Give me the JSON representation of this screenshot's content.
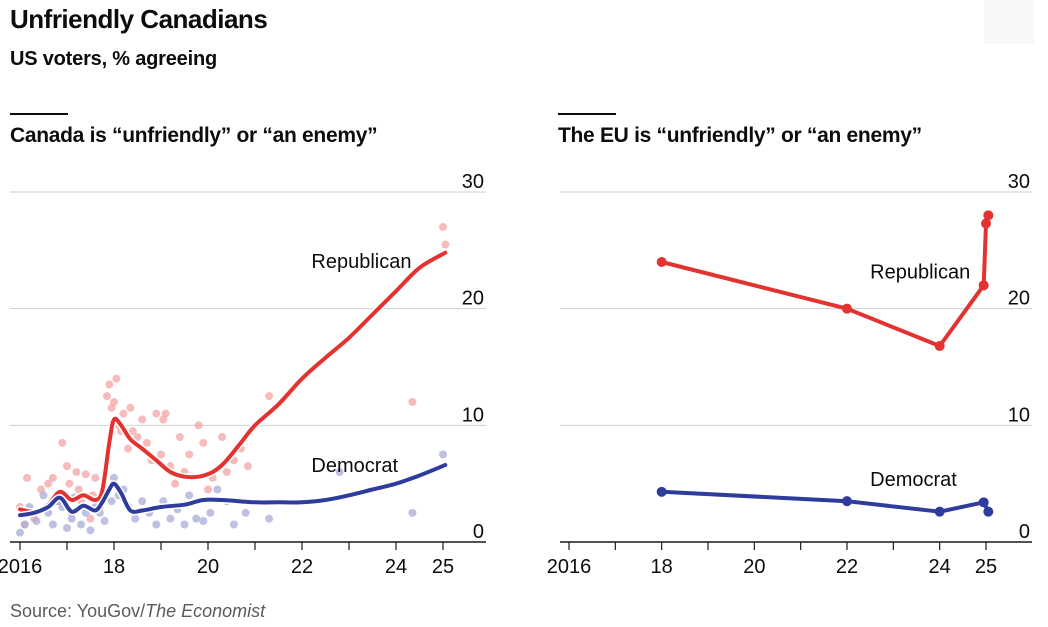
{
  "header": {
    "title": "Unfriendly Canadians",
    "subtitle": "US voters, % agreeing"
  },
  "footer": {
    "source_prefix": "Source: YouGov/",
    "source_italic": "The Economist"
  },
  "colors": {
    "republican": "#e3322f",
    "democrat": "#2e3c9c",
    "republican_dots": "#f3a6a6",
    "democrat_dots": "#a9acd8",
    "grid": "#cfcfcf",
    "axis": "#1a1a1a"
  },
  "chart_data": [
    {
      "type": "line",
      "title": "Canada is “unfriendly” or “an enemy”",
      "ylim": [
        0,
        30
      ],
      "y_ticks": [
        0,
        10,
        20,
        30
      ],
      "xlim": [
        2015.9,
        2025.2
      ],
      "x_ticks": [
        2016,
        2017,
        2018,
        2019,
        2020,
        2021,
        2022,
        2023,
        2024,
        2025
      ],
      "x_tick_labels": [
        {
          "x": 2016,
          "label": "2016"
        },
        {
          "x": 2018,
          "label": "18"
        },
        {
          "x": 2020,
          "label": "20"
        },
        {
          "x": 2022,
          "label": "22"
        },
        {
          "x": 2024,
          "label": "24"
        },
        {
          "x": 2025,
          "label": "25"
        }
      ],
      "series": [
        {
          "name": "Republican",
          "x": [
            2016.0,
            2016.3,
            2016.6,
            2016.85,
            2017.1,
            2017.35,
            2017.6,
            2017.75,
            2017.9,
            2018.0,
            2018.15,
            2018.35,
            2018.6,
            2018.9,
            2019.2,
            2019.5,
            2019.8,
            2020.1,
            2020.35,
            2020.7,
            2021.0,
            2021.5,
            2022.0,
            2022.5,
            2023.0,
            2023.5,
            2024.0,
            2024.5,
            2025.05
          ],
          "y": [
            2.8,
            2.6,
            3.2,
            4.3,
            3.6,
            4.0,
            3.6,
            4.4,
            8.5,
            10.5,
            10.0,
            8.8,
            8.0,
            7.0,
            6.0,
            5.6,
            5.6,
            6.0,
            6.8,
            8.5,
            10.0,
            11.8,
            14.0,
            15.8,
            17.5,
            19.5,
            21.5,
            23.5,
            24.8
          ]
        },
        {
          "name": "Democrat",
          "x": [
            2016.0,
            2016.3,
            2016.6,
            2016.85,
            2017.1,
            2017.35,
            2017.6,
            2017.75,
            2017.9,
            2018.0,
            2018.15,
            2018.35,
            2018.6,
            2019.0,
            2019.5,
            2019.9,
            2020.3,
            2021.0,
            2021.5,
            2022.0,
            2022.5,
            2023.0,
            2023.5,
            2024.0,
            2024.5,
            2025.05
          ],
          "y": [
            2.3,
            2.5,
            3.0,
            3.8,
            2.6,
            3.1,
            2.7,
            3.4,
            4.5,
            5.0,
            4.2,
            2.7,
            2.7,
            3.0,
            3.2,
            3.6,
            3.6,
            3.4,
            3.4,
            3.4,
            3.6,
            4.0,
            4.5,
            5.0,
            5.7,
            6.6
          ]
        }
      ],
      "dots": [
        {
          "name": "Republican",
          "x": [
            2016.0,
            2016.05,
            2016.1,
            2016.15,
            2016.3,
            2016.45,
            2016.6,
            2016.7,
            2016.8,
            2016.9,
            2017.0,
            2017.05,
            2017.1,
            2017.2,
            2017.25,
            2017.3,
            2017.4,
            2017.5,
            2017.55,
            2017.6,
            2017.7,
            2017.8,
            2017.85,
            2017.9,
            2017.95,
            2018.0,
            2018.05,
            2018.1,
            2018.15,
            2018.2,
            2018.3,
            2018.35,
            2018.4,
            2018.5,
            2018.6,
            2018.7,
            2018.8,
            2018.9,
            2019.0,
            2019.05,
            2019.1,
            2019.2,
            2019.3,
            2019.4,
            2019.5,
            2019.6,
            2019.8,
            2019.9,
            2020.0,
            2020.1,
            2020.3,
            2020.4,
            2020.55,
            2020.7,
            2020.85,
            2021.3,
            2024.35,
            2025.0,
            2025.05
          ],
          "y": [
            3.0,
            2.5,
            1.5,
            5.5,
            2.0,
            4.5,
            5.0,
            5.5,
            3.5,
            8.5,
            6.5,
            5.0,
            2.5,
            6.0,
            4.5,
            3.5,
            5.8,
            2.0,
            4.0,
            5.5,
            3.0,
            4.5,
            12.5,
            13.5,
            11.5,
            12.0,
            14.0,
            10.0,
            9.5,
            11.0,
            8.0,
            11.5,
            9.5,
            9.0,
            10.5,
            8.5,
            7.0,
            11.0,
            7.5,
            10.5,
            11.0,
            6.5,
            5.0,
            9.0,
            6.0,
            7.5,
            10.0,
            8.5,
            4.5,
            5.5,
            9.0,
            6.0,
            7.0,
            8.0,
            6.5,
            12.5,
            12.0,
            27.0,
            25.5
          ]
        },
        {
          "name": "Democrat",
          "x": [
            2016.0,
            2016.05,
            2016.1,
            2016.2,
            2016.35,
            2016.5,
            2016.6,
            2016.7,
            2016.8,
            2016.9,
            2017.0,
            2017.1,
            2017.15,
            2017.3,
            2017.4,
            2017.5,
            2017.6,
            2017.7,
            2017.8,
            2017.85,
            2017.95,
            2018.0,
            2018.1,
            2018.2,
            2018.3,
            2018.45,
            2018.6,
            2018.75,
            2018.9,
            2019.05,
            2019.2,
            2019.35,
            2019.5,
            2019.6,
            2019.75,
            2019.9,
            2020.05,
            2020.2,
            2020.4,
            2020.55,
            2020.8,
            2021.3,
            2022.8,
            2024.35,
            2025.0
          ],
          "y": [
            0.8,
            2.5,
            1.5,
            3.0,
            1.8,
            4.0,
            2.5,
            1.5,
            3.5,
            3.0,
            1.2,
            2.0,
            3.8,
            1.5,
            2.5,
            1.0,
            3.0,
            2.5,
            1.8,
            4.5,
            3.5,
            5.5,
            4.0,
            4.5,
            3.0,
            2.0,
            3.5,
            2.5,
            1.5,
            3.5,
            2.0,
            2.8,
            1.5,
            4.0,
            2.0,
            1.8,
            2.5,
            4.5,
            3.5,
            1.5,
            2.5,
            2.0,
            6.0,
            2.5,
            7.5
          ]
        }
      ],
      "annotations": [
        {
          "text": "Republican",
          "x": 2022.2,
          "y": 23.5
        },
        {
          "text": "Democrat",
          "x": 2022.2,
          "y": 6.0
        }
      ],
      "grid": true
    },
    {
      "type": "line",
      "title": "The EU is “unfriendly” or “an enemy”",
      "ylim": [
        0,
        30
      ],
      "y_ticks": [
        0,
        10,
        20,
        30
      ],
      "xlim": [
        2015.9,
        2025.2
      ],
      "x_ticks": [
        2016,
        2017,
        2018,
        2019,
        2020,
        2021,
        2022,
        2023,
        2024,
        2025
      ],
      "x_tick_labels": [
        {
          "x": 2016,
          "label": "2016"
        },
        {
          "x": 2018,
          "label": "18"
        },
        {
          "x": 2020,
          "label": "20"
        },
        {
          "x": 2022,
          "label": "22"
        },
        {
          "x": 2024,
          "label": "24"
        },
        {
          "x": 2025,
          "label": "25"
        }
      ],
      "series": [
        {
          "name": "Republican",
          "x": [
            2018.0,
            2022.0,
            2024.0,
            2024.95,
            2025.0,
            2025.05
          ],
          "y": [
            24.0,
            20.0,
            16.8,
            22.0,
            27.3,
            28.0
          ]
        },
        {
          "name": "Democrat",
          "x": [
            2018.0,
            2022.0,
            2024.0,
            2024.95,
            2025.05
          ],
          "y": [
            4.3,
            3.5,
            2.6,
            3.4,
            2.6
          ]
        }
      ],
      "annotations": [
        {
          "text": "Republican",
          "x": 2022.5,
          "y": 22.6
        },
        {
          "text": "Democrat",
          "x": 2022.5,
          "y": 4.8
        }
      ],
      "grid": true
    }
  ]
}
